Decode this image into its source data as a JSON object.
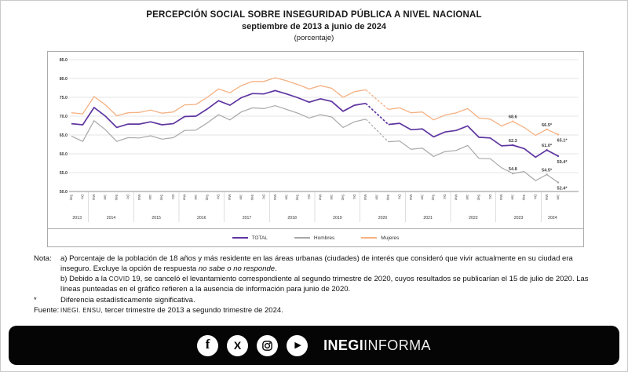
{
  "header": {
    "title": "PERCEPCIÓN SOCIAL SOBRE INSEGURIDAD PÚBLICA A NIVEL NACIONAL",
    "subtitle": "septiembre de 2013 a junio de 2024",
    "unit": "(porcentaje)"
  },
  "chart_data": {
    "type": "line",
    "title": "Percepción social sobre inseguridad pública a nivel nacional (porcentaje)",
    "xlabel": "",
    "ylabel": "",
    "ylim": [
      50,
      85
    ],
    "yticks": [
      50,
      55,
      60,
      65,
      70,
      75,
      80,
      85
    ],
    "grid": true,
    "legend_position": "bottom",
    "missing_index": 27,
    "missing_note": "Jun 2020 sin levantamiento (COVID-19), tramo punteado",
    "x": [
      "Sep",
      "Dic",
      "Mar",
      "Jun",
      "Sep",
      "Dic",
      "Mar",
      "Jun",
      "Sep",
      "Dic",
      "Mar",
      "Jun",
      "Sep",
      "Dic",
      "Mar",
      "Jun",
      "Sep",
      "Dic",
      "Mar",
      "Jun",
      "Sep",
      "Dic",
      "Mar",
      "Jun",
      "Sep",
      "Dic",
      "Mar",
      "Jun",
      "Sep",
      "Dic",
      "Mar",
      "Jun",
      "Sep",
      "Dic",
      "Mar",
      "Jun",
      "Sep",
      "Dic",
      "Mar",
      "Jun",
      "Sep",
      "Dic",
      "Mar",
      "Jun"
    ],
    "year_groups": [
      {
        "label": "2013",
        "count": 2
      },
      {
        "label": "2014",
        "count": 4
      },
      {
        "label": "2015",
        "count": 4
      },
      {
        "label": "2016",
        "count": 4
      },
      {
        "label": "2017",
        "count": 4
      },
      {
        "label": "2018",
        "count": 4
      },
      {
        "label": "2019",
        "count": 4
      },
      {
        "label": "2020",
        "count": 4
      },
      {
        "label": "2021",
        "count": 4
      },
      {
        "label": "2022",
        "count": 4
      },
      {
        "label": "2023",
        "count": 4
      },
      {
        "label": "2024",
        "count": 2
      }
    ],
    "series": [
      {
        "name": "TOTAL",
        "color": "#5f35a1",
        "width": 1.7,
        "values": [
          68.0,
          67.7,
          72.3,
          70.0,
          67.0,
          67.9,
          67.9,
          68.5,
          67.7,
          68.0,
          69.9,
          70.0,
          71.9,
          74.1,
          72.9,
          74.9,
          76.0,
          75.9,
          76.8,
          75.9,
          74.9,
          73.7,
          74.6,
          73.9,
          71.3,
          72.9,
          73.4,
          null,
          67.8,
          68.1,
          66.4,
          66.6,
          64.5,
          65.8,
          66.2,
          67.4,
          64.4,
          64.2,
          62.1,
          62.3,
          61.4,
          59.1,
          61.0,
          59.4
        ]
      },
      {
        "name": "Hombres",
        "color": "#a8a8a8",
        "width": 1.2,
        "values": [
          64.7,
          63.3,
          68.8,
          66.4,
          63.3,
          64.3,
          64.2,
          64.8,
          63.9,
          64.3,
          66.2,
          66.3,
          68.2,
          70.4,
          69.0,
          71.1,
          72.2,
          72.0,
          72.8,
          71.8,
          70.8,
          69.5,
          70.4,
          69.8,
          67.0,
          68.5,
          69.2,
          null,
          63.2,
          63.4,
          61.2,
          61.5,
          59.3,
          60.6,
          60.9,
          62.2,
          58.8,
          58.7,
          56.3,
          54.8,
          55.3,
          52.9,
          54.5,
          52.4
        ]
      },
      {
        "name": "Mujeres",
        "color": "#f5b183",
        "width": 1.3,
        "values": [
          70.9,
          70.6,
          75.2,
          73.0,
          70.1,
          70.9,
          71.0,
          71.6,
          70.8,
          71.1,
          73.0,
          73.1,
          75.0,
          77.2,
          76.2,
          78.1,
          79.2,
          79.2,
          80.2,
          79.4,
          78.4,
          77.2,
          78.1,
          77.4,
          75.0,
          76.5,
          77.0,
          null,
          71.8,
          72.2,
          70.9,
          71.1,
          69.0,
          70.3,
          70.9,
          72.0,
          69.5,
          69.2,
          67.4,
          68.6,
          67.0,
          64.9,
          66.5,
          65.1
        ]
      }
    ],
    "end_labels": [
      {
        "series": "Mujeres",
        "index": 39,
        "text": "68.6"
      },
      {
        "series": "Mujeres",
        "index": 42,
        "text": "66.5*"
      },
      {
        "series": "Mujeres",
        "index": 43,
        "text": "65.1*"
      },
      {
        "series": "TOTAL",
        "index": 39,
        "text": "62.3"
      },
      {
        "series": "TOTAL",
        "index": 42,
        "text": "61.0*"
      },
      {
        "series": "TOTAL",
        "index": 43,
        "text": "59.4*"
      },
      {
        "series": "Hombres",
        "index": 39,
        "text": "54.8"
      },
      {
        "series": "Hombres",
        "index": 42,
        "text": "54.5*"
      },
      {
        "series": "Hombres",
        "index": 43,
        "text": "52.4*"
      }
    ]
  },
  "notes": {
    "rows": [
      {
        "label": "Nota:",
        "segments": [
          {
            "t": "a) Porcentaje de la población de 18 años y más residente en las áreas urbanas (ciudades) de interés que consideró que vivir actualmente en su ciudad era inseguro. Excluye la opción de respuesta "
          },
          {
            "t": "no sabe o no responde",
            "style": "italic"
          },
          {
            "t": "."
          }
        ]
      },
      {
        "label": "",
        "segments": [
          {
            "t": "b) Debido a la "
          },
          {
            "t": "COVID",
            "style": "caps"
          },
          {
            "t": " 19, se canceló el levantamiento correspondiente al segundo trimestre de 2020, cuyos resultados se publicarían el 15 de julio de 2020. Las líneas punteadas en el gráfico refieren a la ausencia de información para junio de 2020."
          }
        ]
      },
      {
        "label": "*",
        "segments": [
          {
            "t": "Diferencia estadísticamente significativa."
          }
        ]
      },
      {
        "label": "Fuente:",
        "segments": [
          {
            "t": "INEGI. ENSU,",
            "style": "caps"
          },
          {
            "t": " tercer trimestre de 2013 a segundo trimestre de 2024."
          }
        ]
      }
    ]
  },
  "footer": {
    "background": "#050505",
    "icons": [
      "facebook-icon",
      "x-icon",
      "instagram-icon",
      "youtube-icon"
    ],
    "facebook_glyph": "f",
    "x_glyph": "X",
    "youtube_glyph": "▶",
    "brand_bold": "INEGI",
    "brand_regular": "INFORMA"
  }
}
